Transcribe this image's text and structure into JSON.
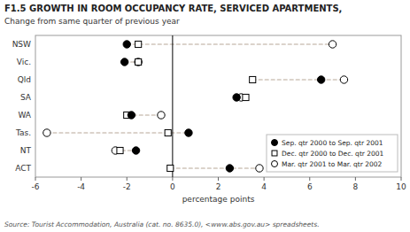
{
  "chart_data": {
    "type": "dot",
    "orientation": "horizontal",
    "title": "F1.5 GROWTH IN ROOM OCCUPANCY RATE, SERVICED APARTMENTS,",
    "subtitle": "Change from same quarter of previous year",
    "source": "Source: Tourist Accommodation, Australia (cat. no. 8635.0), <www.abs.gov.au> spreadsheets.",
    "xlabel": "percentage points",
    "xlim": [
      -6,
      10
    ],
    "xticks": [
      -6,
      -4,
      -2,
      0,
      2,
      4,
      6,
      8,
      10
    ],
    "categories": [
      "NSW",
      "Vic.",
      "Qld",
      "SA",
      "WA",
      "Tas.",
      "NT",
      "ACT"
    ],
    "series": [
      {
        "name": "Sep. qtr 2000 to Sep. qtr 2001",
        "color": "#000000",
        "marker": "filled-circle",
        "values": [
          -2.0,
          -2.1,
          6.5,
          2.8,
          -1.8,
          0.7,
          -1.6,
          2.5
        ]
      },
      {
        "name": "Dec. qtr 2000 to Dec. qtr 2001",
        "color": "#000000",
        "marker": "open-square",
        "values": [
          -1.5,
          -1.5,
          3.5,
          3.2,
          -2.0,
          -0.2,
          -2.3,
          -0.1
        ]
      },
      {
        "name": "Mar. qtr 2001 to Mar. qtr 2002",
        "color": "#000000",
        "marker": "open-circle",
        "values": [
          7.0,
          -1.5,
          7.5,
          3.0,
          -0.5,
          -5.5,
          -2.5,
          3.8
        ]
      }
    ],
    "color": "#b8a898",
    "line_style": "dashed",
    "reference_line": 0,
    "legend": "lower right",
    "grid": false
  }
}
